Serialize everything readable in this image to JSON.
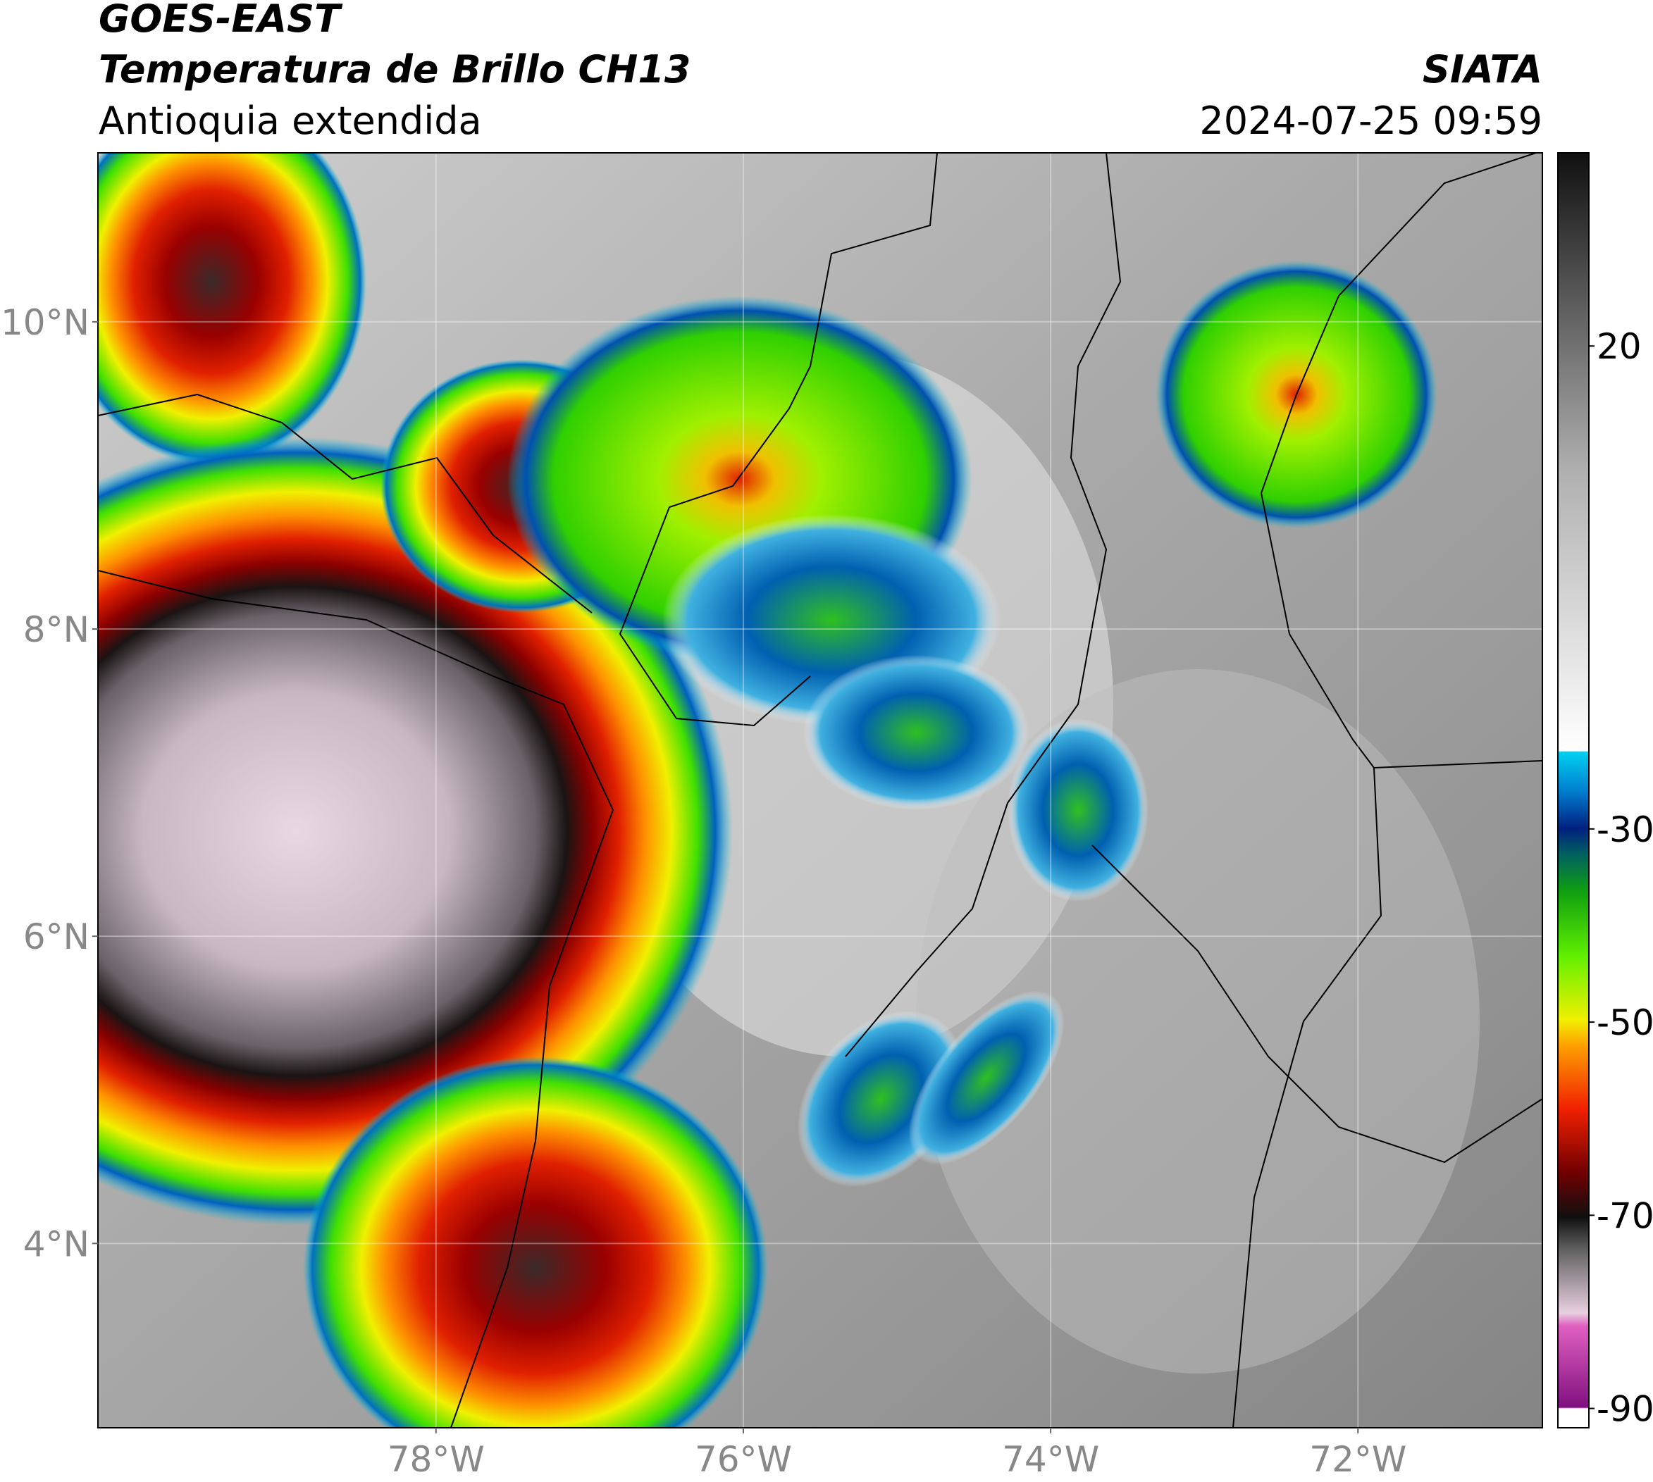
{
  "chart_data": {
    "type": "map",
    "title": "GOES-EAST",
    "subtitle": "Temperatura de Brillo CH13",
    "region": "Antioquia extendida",
    "source": "SIATA",
    "datetime": "2024-07-25 09:59",
    "xlim": [
      -80.2,
      -70.8
    ],
    "ylim": [
      2.8,
      11.1
    ],
    "xticks": [
      {
        "value": -78,
        "label": "78°W"
      },
      {
        "value": -76,
        "label": "76°W"
      },
      {
        "value": -74,
        "label": "74°W"
      },
      {
        "value": -72,
        "label": "72°W"
      }
    ],
    "yticks": [
      {
        "value": 4,
        "label": "4°N"
      },
      {
        "value": 6,
        "label": "6°N"
      },
      {
        "value": 8,
        "label": "8°N"
      },
      {
        "value": 10,
        "label": "10°N"
      }
    ],
    "grid": true,
    "colorbar": {
      "clim": [
        -92,
        40
      ],
      "ticks": [
        -90,
        -70,
        -50,
        -30,
        20
      ]
    }
  }
}
